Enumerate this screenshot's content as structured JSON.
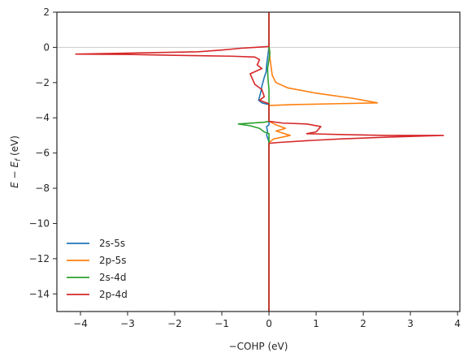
{
  "chart_data": {
    "type": "line",
    "title": "",
    "xlabel": "−COHP (eV)",
    "ylabel_main": "E − E",
    "ylabel_sub": "f",
    "ylabel_unit": " (eV)",
    "xlim": [
      -4.5,
      4.05
    ],
    "ylim": [
      -15,
      2
    ],
    "xticks": [
      -4,
      -3,
      -2,
      -1,
      0,
      1,
      2,
      3,
      4
    ],
    "xtick_labels": [
      "−4",
      "−3",
      "−2",
      "−1",
      "0",
      "1",
      "2",
      "3",
      "4"
    ],
    "yticks": [
      2,
      0,
      -2,
      -4,
      -6,
      -8,
      -10,
      -12,
      -14
    ],
    "ytick_labels": [
      "2",
      "0",
      "−2",
      "−4",
      "−6",
      "−8",
      "−10",
      "−12",
      "−14"
    ],
    "fermi_line": 0,
    "grid": false,
    "legend_placement": "lower-left",
    "series": [
      {
        "name": "2s-5s",
        "color": "#1f77b4",
        "points": [
          [
            0,
            2
          ],
          [
            0,
            0.05
          ],
          [
            -0.02,
            -0.4
          ],
          [
            -0.05,
            -1.0
          ],
          [
            -0.06,
            -1.4
          ],
          [
            -0.1,
            -1.7
          ],
          [
            -0.15,
            -2.2
          ],
          [
            -0.17,
            -2.5
          ],
          [
            -0.2,
            -2.8
          ],
          [
            -0.22,
            -3.0
          ],
          [
            -0.15,
            -3.15
          ],
          [
            0,
            -3.25
          ],
          [
            0,
            -4.4
          ],
          [
            -0.05,
            -4.5
          ],
          [
            -0.03,
            -4.8
          ],
          [
            -0.05,
            -5.0
          ],
          [
            -0.02,
            -5.2
          ],
          [
            0,
            -5.4
          ],
          [
            0,
            -15
          ]
        ]
      },
      {
        "name": "2p-5s",
        "color": "#ff7f0e",
        "points": [
          [
            0,
            2
          ],
          [
            0,
            0.05
          ],
          [
            0.02,
            -0.6
          ],
          [
            0.04,
            -1.0
          ],
          [
            0.07,
            -1.6
          ],
          [
            0.15,
            -2.0
          ],
          [
            0.4,
            -2.3
          ],
          [
            1.0,
            -2.6
          ],
          [
            1.8,
            -2.9
          ],
          [
            2.3,
            -3.15
          ],
          [
            1.4,
            -3.2
          ],
          [
            0.5,
            -3.25
          ],
          [
            0,
            -3.3
          ],
          [
            0,
            -4.2
          ],
          [
            0.15,
            -4.4
          ],
          [
            0.35,
            -4.6
          ],
          [
            0.15,
            -4.75
          ],
          [
            0.45,
            -5.0
          ],
          [
            0.1,
            -5.2
          ],
          [
            0,
            -5.4
          ],
          [
            0,
            -15
          ]
        ]
      },
      {
        "name": "2s-4d",
        "color": "#2ca02c",
        "points": [
          [
            0,
            2
          ],
          [
            0,
            0.05
          ],
          [
            0.02,
            -0.3
          ],
          [
            0.0,
            -0.7
          ],
          [
            -0.03,
            -1.2
          ],
          [
            -0.02,
            -1.8
          ],
          [
            0,
            -2.4
          ],
          [
            0,
            -4.2
          ],
          [
            -0.1,
            -4.25
          ],
          [
            -0.65,
            -4.35
          ],
          [
            -0.4,
            -4.45
          ],
          [
            -0.2,
            -4.6
          ],
          [
            -0.1,
            -4.8
          ],
          [
            0,
            -4.9
          ],
          [
            0,
            -15
          ]
        ]
      },
      {
        "name": "2p-4d",
        "color": "#d62728",
        "points": [
          [
            0,
            2
          ],
          [
            0,
            0.05
          ],
          [
            -0.3,
            0.0
          ],
          [
            -0.6,
            -0.05
          ],
          [
            -1.0,
            -0.15
          ],
          [
            -1.5,
            -0.25
          ],
          [
            -2.5,
            -0.3
          ],
          [
            -3.5,
            -0.35
          ],
          [
            -4.1,
            -0.38
          ],
          [
            -3.0,
            -0.4
          ],
          [
            -2.0,
            -0.45
          ],
          [
            -0.8,
            -0.5
          ],
          [
            -0.3,
            -0.55
          ],
          [
            -0.2,
            -0.7
          ],
          [
            -0.25,
            -1.0
          ],
          [
            -0.15,
            -1.2
          ],
          [
            -0.4,
            -1.5
          ],
          [
            -0.35,
            -1.8
          ],
          [
            -0.3,
            -2.1
          ],
          [
            -0.15,
            -2.4
          ],
          [
            -0.1,
            -2.8
          ],
          [
            -0.2,
            -3.0
          ],
          [
            -0.1,
            -3.1
          ],
          [
            0,
            -3.2
          ],
          [
            0,
            -4.2
          ],
          [
            0.3,
            -4.3
          ],
          [
            0.8,
            -4.35
          ],
          [
            1.1,
            -4.5
          ],
          [
            1.0,
            -4.8
          ],
          [
            0.8,
            -4.9
          ],
          [
            1.5,
            -4.95
          ],
          [
            2.5,
            -5.0
          ],
          [
            3.7,
            -5.0
          ],
          [
            2.5,
            -5.1
          ],
          [
            1.5,
            -5.2
          ],
          [
            0.8,
            -5.3
          ],
          [
            0.2,
            -5.4
          ],
          [
            0,
            -5.45
          ],
          [
            0,
            -15
          ]
        ]
      }
    ]
  }
}
